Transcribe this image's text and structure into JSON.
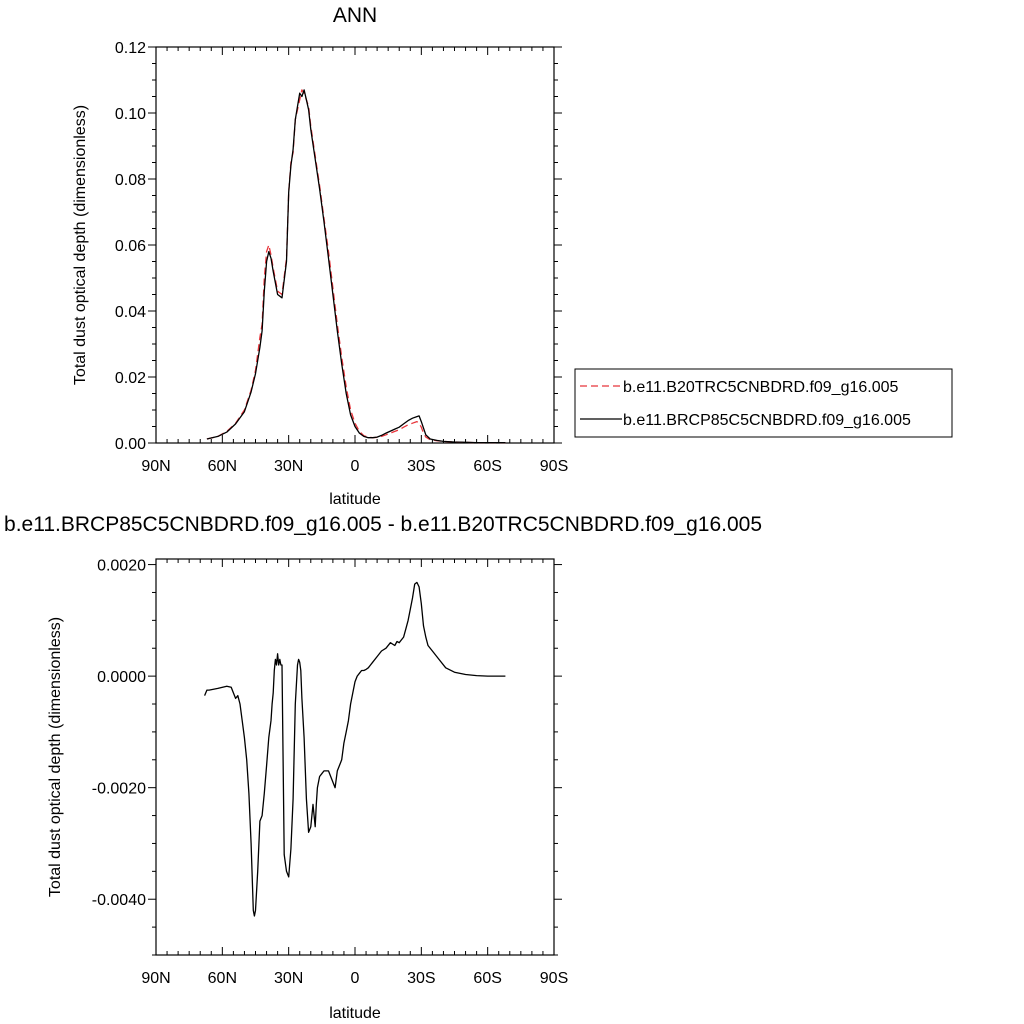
{
  "chart_data": [
    {
      "type": "line",
      "title": "ANN",
      "xlabel": "latitude",
      "ylabel": "Total dust optical depth (dimensionless)",
      "xlim": [
        90,
        -90
      ],
      "ylim": [
        0,
        0.12
      ],
      "x_ticks": [
        90,
        60,
        30,
        0,
        -30,
        -60,
        -90
      ],
      "x_tick_labels": [
        "90N",
        "60N",
        "30N",
        "0",
        "30S",
        "60S",
        "90S"
      ],
      "y_ticks": [
        0,
        0.02,
        0.04,
        0.06,
        0.08,
        0.1,
        0.12
      ],
      "y_tick_labels": [
        "0.00",
        "0.02",
        "0.04",
        "0.06",
        "0.08",
        "0.10",
        "0.12"
      ],
      "legend_position": "right",
      "series": [
        {
          "name": "b.e11.B20TRC5CNBDRD.f09_g16.005",
          "color": "#e8343a",
          "dash": "dashed",
          "x": [
            67,
            62,
            58,
            54,
            50,
            47,
            45,
            43,
            42,
            41,
            40,
            39,
            38,
            37,
            35,
            33,
            31,
            30,
            29,
            28,
            27,
            26,
            25,
            24,
            23,
            22,
            21,
            20,
            18,
            16,
            14,
            12,
            10,
            8,
            6,
            4,
            2,
            0,
            -2,
            -4,
            -6,
            -8,
            -10,
            -12,
            -14,
            -16,
            -18,
            -20,
            -22,
            -24,
            -26,
            -28,
            -29,
            -30,
            -31,
            -32,
            -34,
            -37,
            -40,
            -45,
            -50,
            -55,
            -60,
            -65,
            -68
          ],
          "y": [
            0.0012,
            0.002,
            0.0035,
            0.006,
            0.01,
            0.016,
            0.022,
            0.032,
            0.036,
            0.05,
            0.058,
            0.06,
            0.057,
            0.053,
            0.046,
            0.045,
            0.056,
            0.076,
            0.085,
            0.088,
            0.098,
            0.101,
            0.104,
            0.107,
            0.106,
            0.104,
            0.102,
            0.096,
            0.087,
            0.078,
            0.068,
            0.058,
            0.047,
            0.036,
            0.026,
            0.017,
            0.01,
            0.006,
            0.0035,
            0.0022,
            0.0018,
            0.0016,
            0.0017,
            0.002,
            0.0025,
            0.003,
            0.0035,
            0.004,
            0.0048,
            0.0055,
            0.006,
            0.0065,
            0.006,
            0.0048,
            0.003,
            0.0018,
            0.001,
            0.0007,
            0.0005,
            0.0003,
            0.0002,
            0.0001,
            0.0001,
            0.0001,
            0.0001
          ]
        },
        {
          "name": "b.e11.BRCP85C5CNBDRD.f09_g16.005",
          "color": "#000000",
          "dash": "solid",
          "x": [
            67,
            62,
            58,
            54,
            50,
            47,
            45,
            43,
            42,
            41,
            40,
            39,
            38,
            37,
            35,
            33,
            31,
            30,
            29,
            28,
            27,
            26,
            25,
            24,
            23,
            22,
            21,
            20,
            18,
            16,
            14,
            12,
            10,
            8,
            6,
            4,
            2,
            0,
            -2,
            -4,
            -6,
            -8,
            -10,
            -12,
            -14,
            -16,
            -18,
            -20,
            -22,
            -24,
            -26,
            -28,
            -29,
            -30,
            -31,
            -32,
            -34,
            -37,
            -40,
            -45,
            -50,
            -55,
            -60,
            -65,
            -68
          ],
          "y": [
            0.0012,
            0.002,
            0.0033,
            0.0058,
            0.0095,
            0.0155,
            0.021,
            0.029,
            0.034,
            0.046,
            0.055,
            0.058,
            0.056,
            0.052,
            0.045,
            0.044,
            0.055,
            0.076,
            0.084,
            0.089,
            0.098,
            0.102,
            0.106,
            0.105,
            0.107,
            0.104,
            0.101,
            0.095,
            0.086,
            0.077,
            0.067,
            0.056,
            0.045,
            0.034,
            0.024,
            0.015,
            0.0085,
            0.005,
            0.003,
            0.002,
            0.0016,
            0.0016,
            0.0018,
            0.0023,
            0.003,
            0.0036,
            0.0042,
            0.0048,
            0.0058,
            0.0068,
            0.0075,
            0.008,
            0.0082,
            0.0065,
            0.0045,
            0.0025,
            0.0012,
            0.0008,
            0.0005,
            0.0003,
            0.0002,
            0.0001,
            0.0001,
            0.0001,
            0.0001
          ]
        }
      ]
    },
    {
      "type": "line",
      "title": "b.e11.BRCP85C5CNBDRD.f09_g16.005 - b.e11.B20TRC5CNBDRD.f09_g16.005",
      "xlabel": "latitude",
      "ylabel": "Total dust optical depth (dimensionless)",
      "xlim": [
        90,
        -90
      ],
      "ylim": [
        -0.005,
        0.0021
      ],
      "x_ticks": [
        90,
        60,
        30,
        0,
        -30,
        -60,
        -90
      ],
      "x_tick_labels": [
        "90N",
        "60N",
        "30N",
        "0",
        "30S",
        "60S",
        "90S"
      ],
      "y_ticks": [
        0.002,
        0,
        -0.002,
        -0.004
      ],
      "y_tick_labels": [
        "0.0020",
        "0.0000",
        "-0.0020",
        "-0.0040"
      ],
      "series": [
        {
          "name": "",
          "color": "#000000",
          "dash": "solid",
          "x": [
            68,
            67,
            66,
            62,
            58,
            56,
            55,
            54,
            53,
            52,
            51,
            50,
            49,
            48,
            47,
            46,
            45.5,
            45,
            44,
            43,
            42,
            41,
            40,
            39,
            38,
            37.5,
            37,
            36.5,
            36,
            35.5,
            35,
            34.5,
            34,
            33.5,
            33,
            32,
            31,
            30,
            29,
            28,
            27,
            26,
            25.5,
            25,
            24.5,
            24,
            23,
            22,
            21,
            20,
            19,
            18,
            17.5,
            17,
            16,
            15,
            14,
            13,
            12,
            11,
            10,
            9,
            8,
            7,
            6,
            5,
            4,
            3,
            2,
            1,
            0,
            -1,
            -2,
            -3,
            -4,
            -5,
            -6,
            -7,
            -8,
            -10,
            -12,
            -14,
            -16,
            -18,
            -19,
            -20,
            -21,
            -22,
            -23,
            -24,
            -25,
            -26,
            -27,
            -28,
            -29,
            -30,
            -31,
            -32,
            -33,
            -35,
            -38,
            -41,
            -45,
            -50,
            -55,
            -60,
            -65,
            -68
          ],
          "y": [
            -0.00035,
            -0.00025,
            -0.00025,
            -0.00022,
            -0.00018,
            -0.0002,
            -0.0003,
            -0.0004,
            -0.00035,
            -0.0005,
            -0.0008,
            -0.0011,
            -0.0015,
            -0.0021,
            -0.003,
            -0.0042,
            -0.0043,
            -0.0042,
            -0.0035,
            -0.0026,
            -0.0025,
            -0.0021,
            -0.0016,
            -0.0011,
            -0.0008,
            -0.0005,
            -0.0003,
            0.0001,
            0.0003,
            0.0002,
            0.0004,
            0.0002,
            0.0003,
            0.0002,
            0.0002,
            -0.0032,
            -0.0035,
            -0.0036,
            -0.0031,
            -0.0022,
            -0.0005,
            0.0002,
            0.0003,
            0.00025,
            0.0001,
            -0.0004,
            -0.0011,
            -0.0022,
            -0.0028,
            -0.0027,
            -0.0023,
            -0.0027,
            -0.0023,
            -0.002,
            -0.0018,
            -0.00175,
            -0.0017,
            -0.0017,
            -0.0017,
            -0.0018,
            -0.0019,
            -0.002,
            -0.0017,
            -0.0016,
            -0.0015,
            -0.0012,
            -0.001,
            -0.0008,
            -0.0005,
            -0.0003,
            -0.0001,
            0.0,
            5e-05,
            0.0001,
            0.0001,
            0.00012,
            0.00015,
            0.0002,
            0.00025,
            0.00035,
            0.00045,
            0.0005,
            0.0006,
            0.00055,
            0.00062,
            0.0006,
            0.00065,
            0.0007,
            0.00085,
            0.001,
            0.0012,
            0.0014,
            0.00165,
            0.00168,
            0.0016,
            0.0013,
            0.0009,
            0.0007,
            0.00055,
            0.00045,
            0.0003,
            0.00015,
            7e-05,
            3e-05,
            1e-05,
            0.0,
            0.0,
            0.0
          ]
        }
      ]
    }
  ]
}
